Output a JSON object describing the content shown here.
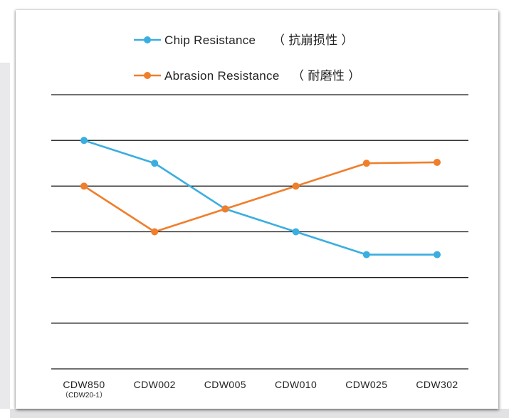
{
  "chart_data": {
    "type": "line",
    "categories": [
      "CDW850",
      "CDW002",
      "CDW005",
      "CDW010",
      "CDW025",
      "CDW302"
    ],
    "category_sublabels": [
      "（CDW20-1）",
      "",
      "",
      "",
      "",
      ""
    ],
    "ylim": [
      0,
      6
    ],
    "grid": true,
    "yticks_visible": false,
    "legend_placement": "top",
    "series": [
      {
        "name": "Chip Resistance",
        "name_cn": "（ 抗崩损性 ）",
        "color": "#3aaee0",
        "values": [
          5.0,
          4.5,
          3.5,
          3.0,
          2.5,
          2.5
        ]
      },
      {
        "name": "Abrasion Resistance",
        "name_cn": "（ 耐磨性 ）",
        "color": "#f07e2b",
        "values": [
          4.0,
          3.0,
          3.5,
          4.0,
          4.5,
          4.52
        ]
      }
    ]
  }
}
